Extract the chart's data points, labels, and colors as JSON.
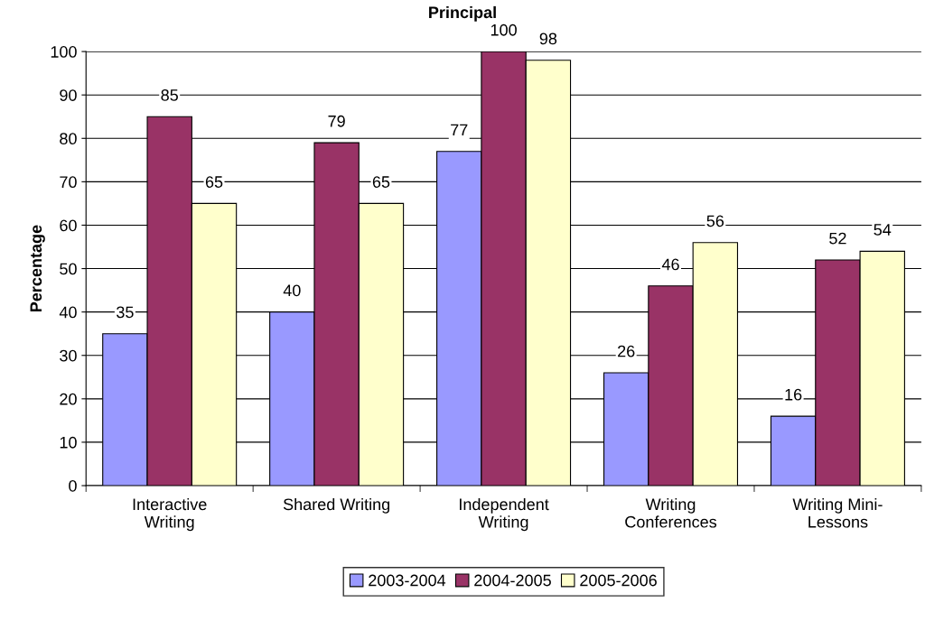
{
  "chart_data": {
    "type": "bar",
    "title": "Principal",
    "ylabel": "Percentage",
    "categories": [
      "Interactive\nWriting",
      "Shared Writing",
      "Independent\nWriting",
      "Writing\nConferences",
      "Writing Mini-\nLessons"
    ],
    "series": [
      {
        "name": "2003-2004",
        "color": "#9999ff",
        "values": [
          35,
          40,
          77,
          26,
          16
        ]
      },
      {
        "name": "2004-2005",
        "color": "#993366",
        "values": [
          85,
          79,
          100,
          46,
          52
        ]
      },
      {
        "name": "2005-2006",
        "color": "#ffffcc",
        "values": [
          65,
          65,
          98,
          56,
          54
        ]
      }
    ],
    "ylim": [
      0,
      100
    ],
    "yticks": [
      0,
      10,
      20,
      30,
      40,
      50,
      60,
      70,
      80,
      90,
      100
    ],
    "grid": "y",
    "legend": "bottom",
    "data_labels": true
  }
}
